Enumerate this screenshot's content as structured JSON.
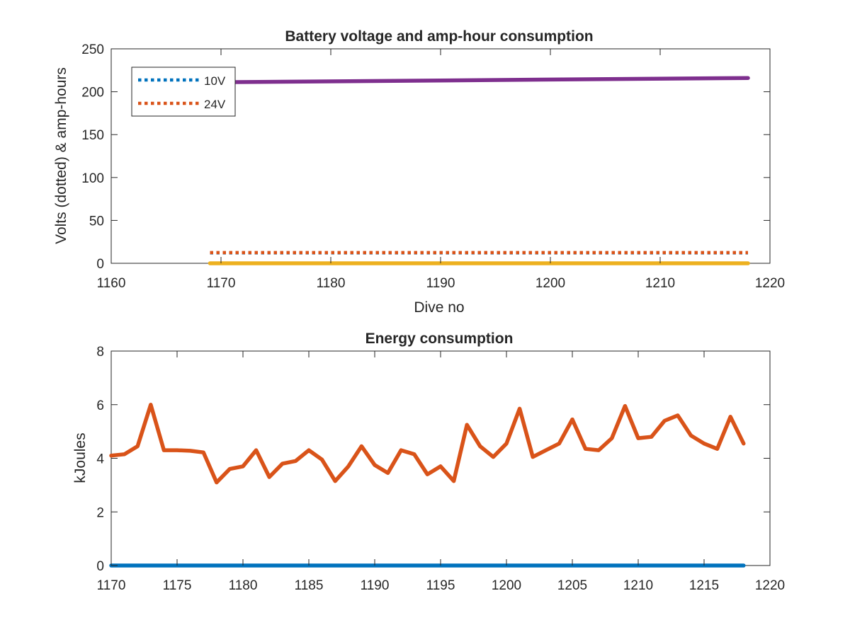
{
  "chart_data": [
    {
      "type": "line",
      "title": "Battery voltage and amp-hour consumption",
      "xlabel": "Dive no",
      "ylabel": "Volts (dotted) & amp-hours",
      "xlim": [
        1160,
        1220
      ],
      "ylim": [
        0,
        250
      ],
      "xticks": [
        "1160",
        "1170",
        "1180",
        "1190",
        "1200",
        "1210",
        "1220"
      ],
      "yticks": [
        "0",
        "50",
        "100",
        "150",
        "200",
        "250"
      ],
      "grid": false,
      "legend_position": "top-left",
      "series": [
        {
          "name": "10V",
          "style": "dotted",
          "color": "#0072BD",
          "x": [
            1169,
            1218
          ],
          "y": [
            12.2,
            12.2
          ]
        },
        {
          "name": "24V",
          "style": "dotted",
          "color": "#D95319",
          "x": [
            1169,
            1218
          ],
          "y": [
            12.5,
            12.5
          ]
        },
        {
          "style": "solid",
          "color": "#EDB120",
          "x": [
            1169,
            1218
          ],
          "y": [
            0,
            0
          ]
        },
        {
          "style": "solid",
          "color": "#7E2F8E",
          "x": [
            1169,
            1218
          ],
          "y": [
            211,
            216
          ]
        }
      ]
    },
    {
      "type": "line",
      "title": "Energy consumption",
      "xlabel": "",
      "ylabel": "kJoules",
      "xlim": [
        1170,
        1220
      ],
      "ylim": [
        0,
        8
      ],
      "xticks": [
        "1170",
        "1175",
        "1180",
        "1185",
        "1190",
        "1195",
        "1200",
        "1205",
        "1210",
        "1215",
        "1220"
      ],
      "yticks": [
        "0",
        "2",
        "4",
        "6",
        "8"
      ],
      "grid": false,
      "series": [
        {
          "style": "solid",
          "color": "#0072BD",
          "x": [
            1170,
            1218
          ],
          "y": [
            0,
            0
          ]
        },
        {
          "style": "solid",
          "color": "#D95319",
          "x": [
            1170,
            1171,
            1172,
            1173,
            1174,
            1175,
            1176,
            1177,
            1178,
            1179,
            1180,
            1181,
            1182,
            1183,
            1184,
            1185,
            1186,
            1187,
            1188,
            1189,
            1190,
            1191,
            1192,
            1193,
            1194,
            1195,
            1196,
            1197,
            1198,
            1199,
            1200,
            1201,
            1202,
            1203,
            1204,
            1205,
            1206,
            1207,
            1208,
            1209,
            1210,
            1211,
            1212,
            1213,
            1214,
            1215,
            1216,
            1217,
            1218
          ],
          "y": [
            4.1,
            4.15,
            4.45,
            6.0,
            4.3,
            4.3,
            4.28,
            4.22,
            3.1,
            3.6,
            3.7,
            4.3,
            3.3,
            3.8,
            3.9,
            4.3,
            3.95,
            3.15,
            3.7,
            4.45,
            3.75,
            3.45,
            4.3,
            4.15,
            3.4,
            3.7,
            3.15,
            5.25,
            4.45,
            4.05,
            4.55,
            5.85,
            4.05,
            4.3,
            4.55,
            5.45,
            4.35,
            4.3,
            4.75,
            5.95,
            4.75,
            4.8,
            5.4,
            5.6,
            4.85,
            4.55,
            4.35,
            5.55,
            4.55
          ]
        }
      ]
    }
  ]
}
